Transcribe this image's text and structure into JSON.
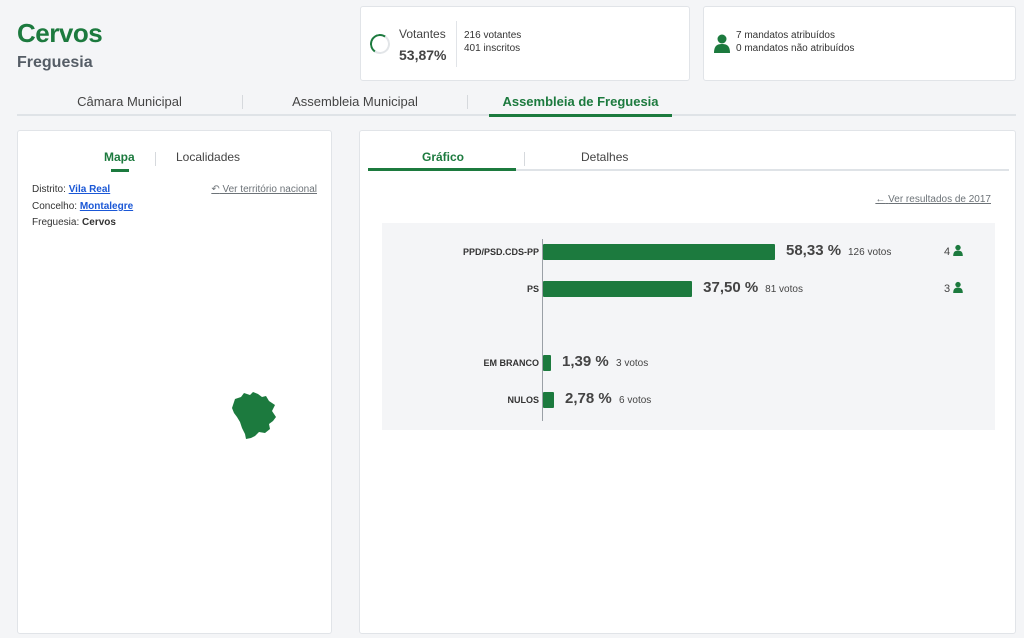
{
  "header": {
    "title": "Cervos",
    "subtitle": "Freguesia"
  },
  "voters": {
    "label": "Votantes",
    "percent": "53,87%",
    "turnout_fraction": 0.5387,
    "voters_count": "216 votantes",
    "registered": "401 inscritos"
  },
  "mandates": {
    "assigned": "7 mandatos atribuídos",
    "unassigned": "0 mandatos não atribuídos",
    "icon": "person-icon"
  },
  "main_tabs": [
    {
      "label": "Câmara Municipal"
    },
    {
      "label": "Assembleia Municipal"
    },
    {
      "label": "Assembleia de Freguesia"
    }
  ],
  "left_panel": {
    "tabs": [
      {
        "label": "Mapa"
      },
      {
        "label": "Localidades"
      }
    ],
    "distrito_label": "Distrito:",
    "distrito_value": "Vila Real",
    "concelho_label": "Concelho:",
    "concelho_value": "Montalegre",
    "freguesia_label": "Freguesia:",
    "freguesia_value": "Cervos",
    "national_link": "Ver território nacional",
    "map_color": "#1c7a3e"
  },
  "right_panel": {
    "tabs": [
      {
        "label": "Gráfico"
      },
      {
        "label": "Detalhes"
      }
    ],
    "results_link": "Ver resultados de 2017"
  },
  "chart_data": {
    "type": "bar",
    "orientation": "horizontal",
    "categories": [
      "PPD/PSD.CDS-PP",
      "PS",
      "EM BRANCO",
      "NULOS"
    ],
    "values": [
      58.33,
      37.5,
      1.39,
      2.78
    ],
    "rows": [
      {
        "label": "PPD/PSD.CDS-PP",
        "percent": 58.33,
        "percent_text": "58,33 %",
        "votes_text": "126 votos",
        "seats": "4"
      },
      {
        "label": "PS",
        "percent": 37.5,
        "percent_text": "37,50 %",
        "votes_text": "81 votos",
        "seats": "3"
      },
      {
        "label": "EM BRANCO",
        "percent": 1.39,
        "percent_text": "1,39 %",
        "votes_text": "3 votos",
        "seats": ""
      },
      {
        "label": "NULOS",
        "percent": 2.78,
        "percent_text": "2,78 %",
        "votes_text": "6 votos",
        "seats": ""
      }
    ],
    "color": "#1c7a3e"
  }
}
